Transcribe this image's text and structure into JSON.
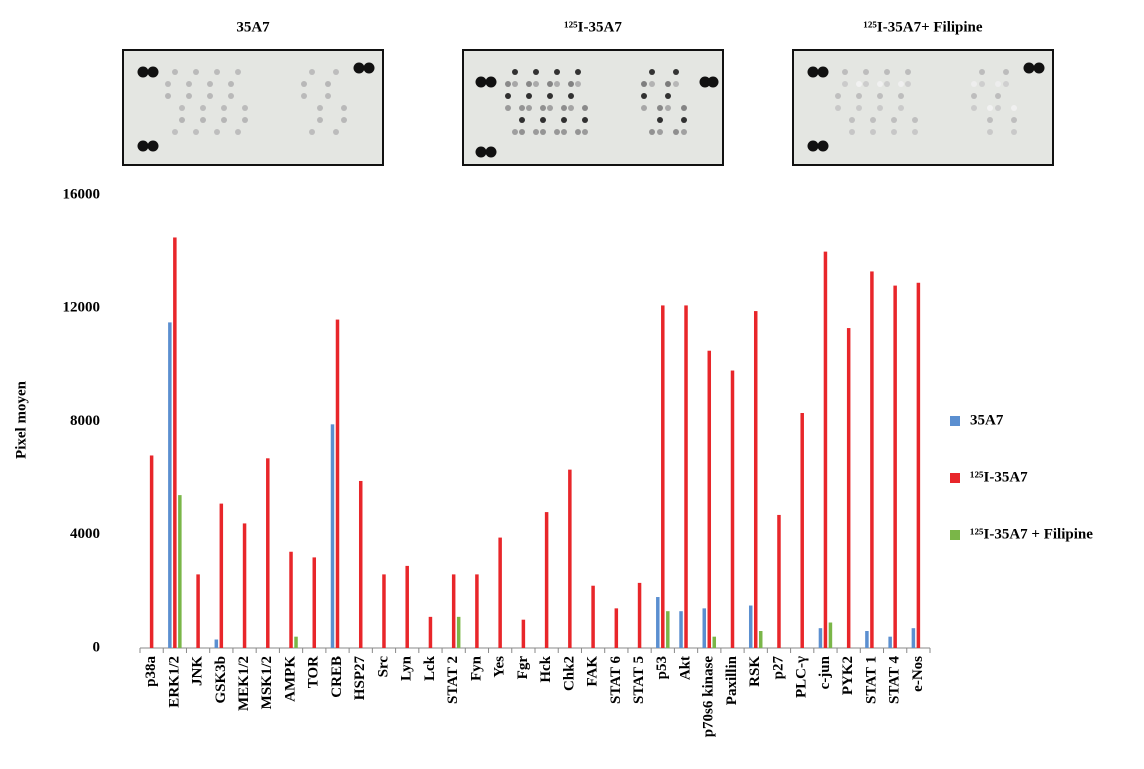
{
  "blot_titles": [
    "35A7",
    "¹²⁵I-35A7",
    "¹²⁵I-35A7+ Filipine"
  ],
  "chart_data": {
    "type": "bar",
    "y_label": "Pixel moyen",
    "categories": [
      "p38a",
      "ERK1/2",
      "JNK",
      "GSK3b",
      "MEK1/2",
      "MSK1/2",
      "AMPK",
      "TOR",
      "CREB",
      "HSP27",
      "Src",
      "Lyn",
      "Lck",
      "STAT 2",
      "Fyn",
      "Yes",
      "Fgr",
      "Hck",
      "Chk2",
      "FAK",
      "STAT 6",
      "STAT 5",
      "p53",
      "Akt",
      "p70s6 kinase",
      "Paxillin",
      "RSK",
      "p27",
      "PLC-γ",
      "c-jun",
      "PYK2",
      "STAT 1",
      "STAT 4",
      "e-Nos"
    ],
    "series": [
      {
        "name": "35A7",
        "color": "#5b8fd0",
        "values": [
          0,
          11500,
          0,
          300,
          0,
          0,
          0,
          0,
          7900,
          0,
          0,
          0,
          0,
          0,
          0,
          0,
          0,
          0,
          0,
          0,
          0,
          0,
          1800,
          1300,
          1400,
          0,
          1500,
          0,
          0,
          700,
          0,
          600,
          400,
          700
        ]
      },
      {
        "name": "¹²⁵I-35A7",
        "color": "#e8262a",
        "values": [
          6800,
          14500,
          2600,
          5100,
          4400,
          6700,
          3400,
          3200,
          11600,
          5900,
          2600,
          2900,
          1100,
          2600,
          2600,
          3900,
          1000,
          4800,
          6300,
          2200,
          1400,
          2300,
          12100,
          12100,
          10500,
          9800,
          11900,
          4700,
          8300,
          14000,
          11300,
          13300,
          12800,
          12900
        ]
      },
      {
        "name": "¹²⁵I-35A7 + Filipine",
        "color": "#7ab648",
        "values": [
          0,
          5400,
          0,
          0,
          0,
          0,
          400,
          0,
          0,
          0,
          0,
          0,
          0,
          1100,
          0,
          0,
          0,
          0,
          0,
          0,
          0,
          0,
          1300,
          0,
          400,
          0,
          600,
          0,
          0,
          900,
          0,
          0,
          0,
          0
        ]
      }
    ],
    "ylim": [
      0,
      16000
    ],
    "yticks": [
      0,
      4000,
      8000,
      12000,
      16000
    ],
    "grid": false,
    "legend": "right"
  }
}
